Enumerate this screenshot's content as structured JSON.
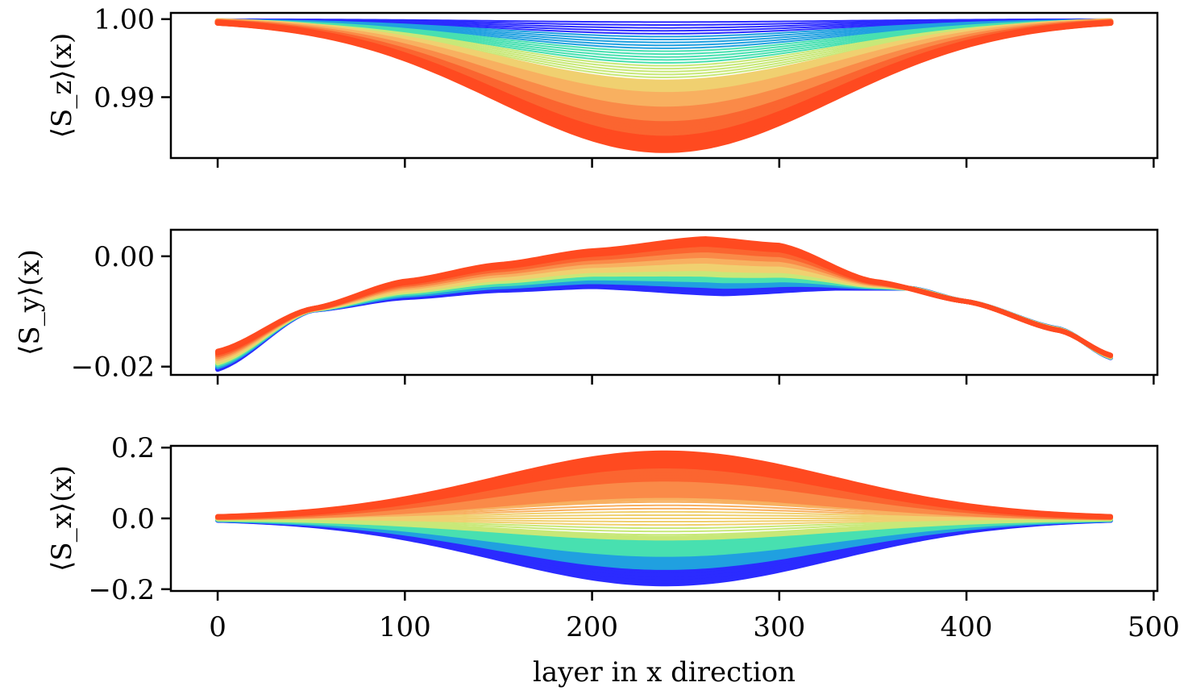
{
  "chart_data": {
    "type": "line",
    "shared_x": {
      "xlabel": "layer in x direction",
      "xlim": [
        -25,
        502
      ],
      "xticks": [
        0,
        100,
        200,
        300,
        400,
        500
      ],
      "x_range_of_data": [
        0,
        478
      ]
    },
    "palette": [
      "#2b2bff",
      "#20a0e0",
      "#48e0b0",
      "#c8e878",
      "#f0d070",
      "#f8b060",
      "#fa8a48",
      "#fb6530",
      "#ff4a20"
    ],
    "panels": [
      {
        "id": "sz",
        "ylabel": "⟨S_z⟩(x)",
        "ylim": [
          0.9822,
          1.0008
        ],
        "yticks": [
          0.99,
          1.0
        ],
        "ytick_labels": [
          "0.99",
          "1.00"
        ],
        "baseline": 1.0,
        "curve_count": 45,
        "max_deviation_at_center": -0.0168,
        "center_x": 239,
        "shape": "symmetric dip, flat near 0 and 478"
      },
      {
        "id": "sy",
        "ylabel": "⟨S_y⟩(x)",
        "ylim": [
          -0.0215,
          0.0048
        ],
        "yticks": [
          -0.02,
          0.0
        ],
        "ytick_labels": [
          "−0.02",
          "0.00"
        ],
        "curve_count": 30,
        "envelope_top": [
          [
            0,
            -0.0172
          ],
          [
            50,
            -0.0095
          ],
          [
            100,
            -0.0045
          ],
          [
            150,
            -0.0015
          ],
          [
            200,
            0.001
          ],
          [
            260,
            0.0032
          ],
          [
            300,
            0.002
          ],
          [
            350,
            -0.0045
          ],
          [
            400,
            -0.0082
          ],
          [
            450,
            -0.0135
          ],
          [
            478,
            -0.018
          ]
        ],
        "envelope_bottom": [
          [
            0,
            -0.0205
          ],
          [
            50,
            -0.0098
          ],
          [
            100,
            -0.0075
          ],
          [
            150,
            -0.0062
          ],
          [
            200,
            -0.0055
          ],
          [
            270,
            -0.0068
          ],
          [
            330,
            -0.0058
          ],
          [
            370,
            -0.0058
          ],
          [
            400,
            -0.0082
          ],
          [
            450,
            -0.0132
          ],
          [
            478,
            -0.0185
          ]
        ]
      },
      {
        "id": "sx",
        "ylabel": "⟨S_x⟩(x)",
        "ylim": [
          -0.205,
          0.205
        ],
        "yticks": [
          -0.2,
          0.0,
          0.2
        ],
        "ytick_labels": [
          "−0.2",
          "0.0",
          "0.2"
        ],
        "curve_count": 41,
        "amplitude_range": [
          -0.185,
          0.185
        ],
        "center_x": 239,
        "shape": "symmetric bell, zero at ends"
      }
    ]
  }
}
